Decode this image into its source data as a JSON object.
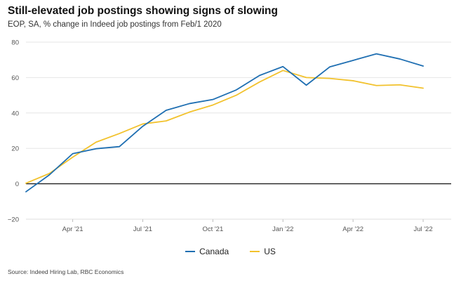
{
  "title": "Still-elevated job postings showing signs of slowing",
  "subtitle": "EOP, SA, % change in Indeed job postings from Feb/1 2020",
  "source": "Source: Indeed Hiring Lab, RBC Economics",
  "colors": {
    "canada": "#1f6fb2",
    "us": "#f2c22d",
    "zero_line": "#222222",
    "grid": "#e6e6e6"
  },
  "chart_data": {
    "type": "line",
    "title": "Still-elevated job postings showing signs of slowing",
    "ylabel": "",
    "xlabel": "",
    "ylim": [
      -20,
      80
    ],
    "xlim": [
      0,
      18.2
    ],
    "yticks": [
      -20,
      0,
      20,
      40,
      60,
      80
    ],
    "yticklabels": [
      "−20",
      "0",
      "20",
      "40",
      "60",
      "80"
    ],
    "xticks": [
      2,
      5,
      8,
      11,
      14,
      17
    ],
    "xticklabels": [
      "Apr '21",
      "Jul '21",
      "Oct '21",
      "Jan '22",
      "Apr '22",
      "Jul '22"
    ],
    "x": [
      0,
      1,
      2,
      3,
      4,
      5,
      6,
      7,
      8,
      9,
      10,
      11,
      12,
      13,
      14,
      15,
      16,
      17
    ],
    "series": [
      {
        "name": "Canada",
        "values": [
          -4.5,
          5.0,
          17.0,
          19.8,
          21.0,
          32.5,
          41.5,
          45.3,
          47.6,
          53.0,
          61.2,
          66.2,
          55.7,
          66.0,
          69.7,
          73.4,
          70.5,
          66.5
        ]
      },
      {
        "name": "US",
        "values": [
          0.3,
          5.8,
          15.0,
          23.5,
          28.4,
          33.8,
          35.5,
          40.5,
          44.5,
          50.0,
          57.5,
          64.0,
          60.0,
          59.5,
          58.2,
          55.5,
          55.9,
          54.0
        ]
      }
    ],
    "legend": [
      "Canada",
      "US"
    ],
    "legend_position": "bottom-center",
    "grid": true
  }
}
